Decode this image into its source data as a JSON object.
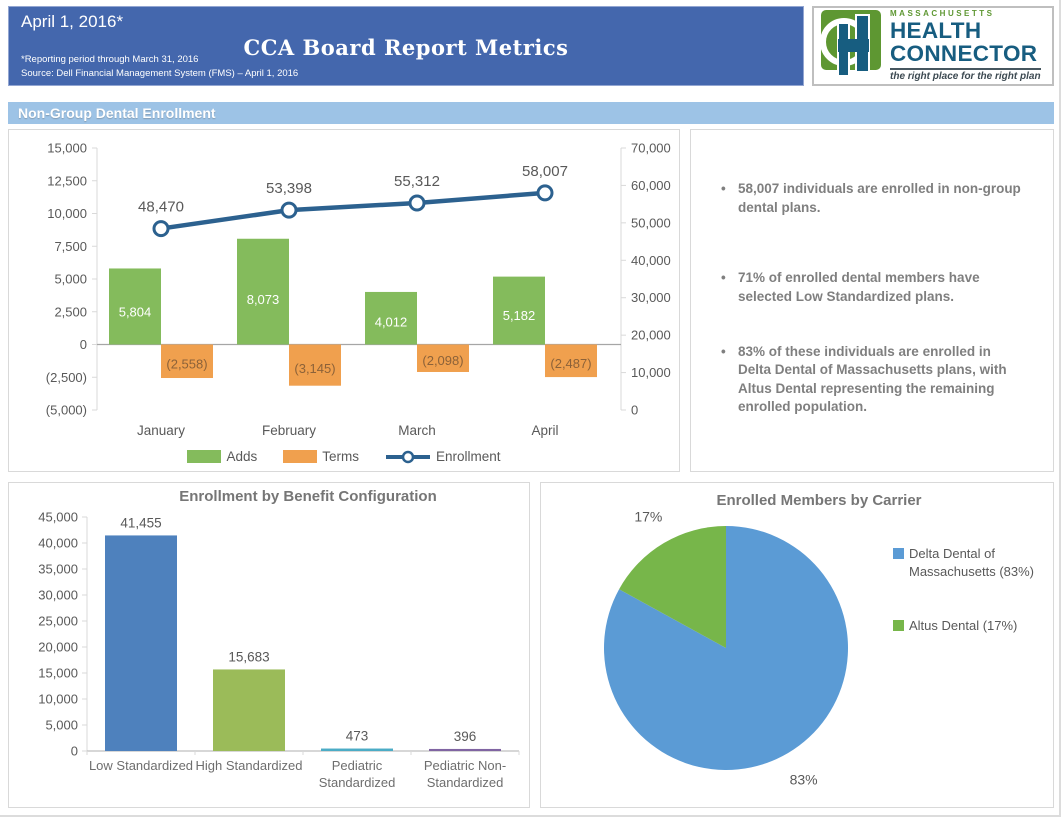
{
  "header": {
    "date": "April 1, 2016*",
    "title": "CCA Board Report Metrics",
    "footnote1": "*Reporting period through March 31, 2016",
    "footnote2": "Source: Dell Financial Management System (FMS) – April 1, 2016"
  },
  "logo": {
    "region": "MASSACHUSETTS",
    "name_line1": "HEALTH",
    "name_line2": "CONNECTOR",
    "tagline": "the right place for the right plan",
    "mark_letter": "H"
  },
  "section_title": "Non-Group Dental Enrollment",
  "bullets": [
    "58,007 individuals are enrolled in non-group dental plans.",
    "71% of enrolled dental members have selected Low Standardized plans.",
    "83% of these individuals are enrolled in Delta Dental of Massachusetts plans, with Altus Dental representing the remaining enrolled population."
  ],
  "chart_data": [
    {
      "id": "enrollment-trend",
      "type": "bar",
      "subtype": "combo-bar-line",
      "categories": [
        "January",
        "February",
        "March",
        "April"
      ],
      "series": [
        {
          "name": "Adds",
          "kind": "bar",
          "color": "#84bb5c",
          "values": [
            5804,
            8073,
            4012,
            5182
          ],
          "labels": [
            "5,804",
            "8,073",
            "4,012",
            "5,182"
          ]
        },
        {
          "name": "Terms",
          "kind": "bar",
          "color": "#f0a04e",
          "values": [
            -2558,
            -3145,
            -2098,
            -2487
          ],
          "labels": [
            "(2,558)",
            "(3,145)",
            "(2,098)",
            "(2,487)"
          ]
        },
        {
          "name": "Enrollment",
          "kind": "line",
          "axis": "right",
          "color": "#2c618f",
          "values": [
            48470,
            53398,
            55312,
            58007
          ],
          "labels": [
            "48,470",
            "53,398",
            "55,312",
            "58,007"
          ]
        }
      ],
      "left_axis": {
        "min": -5000,
        "max": 15000,
        "step": 2500
      },
      "right_axis": {
        "min": 0,
        "max": 70000,
        "step": 10000
      },
      "grid": false,
      "legend_position": "bottom"
    },
    {
      "id": "benefit-configuration",
      "type": "bar",
      "title": "Enrollment by Benefit Configuration",
      "categories": [
        [
          "Low Standardized"
        ],
        [
          "High Standardized"
        ],
        [
          "Pediatric",
          "Standardized"
        ],
        [
          "Pediatric Non-",
          "Standardized"
        ]
      ],
      "values": [
        41455,
        15683,
        473,
        396
      ],
      "labels": [
        "41,455",
        "15,683",
        "473",
        "396"
      ],
      "colors": [
        "#4e81bd",
        "#9bbb59",
        "#4bacc6",
        "#8064a2"
      ],
      "y_axis": {
        "min": 0,
        "max": 45000,
        "step": 5000
      },
      "grid": false,
      "legend_position": "none"
    },
    {
      "id": "members-by-carrier",
      "type": "pie",
      "title": "Enrolled Members by Carrier",
      "slices": [
        {
          "label": "Delta Dental of Massachusetts (83%)",
          "pct": 83,
          "color": "#5b9bd5",
          "data_label": "83%"
        },
        {
          "label": "Altus Dental (17%)",
          "pct": 17,
          "color": "#77b64a",
          "data_label": "17%"
        }
      ],
      "legend_position": "right"
    }
  ],
  "colors": {
    "header_bg": "#4467ad",
    "section_bg": "#9dc3e6",
    "panel_border": "#d9d9d9",
    "axis_text": "#595959",
    "bullet_text": "#7f7f7f",
    "logo_green": "#5e9732",
    "logo_blue": "#175d80"
  }
}
